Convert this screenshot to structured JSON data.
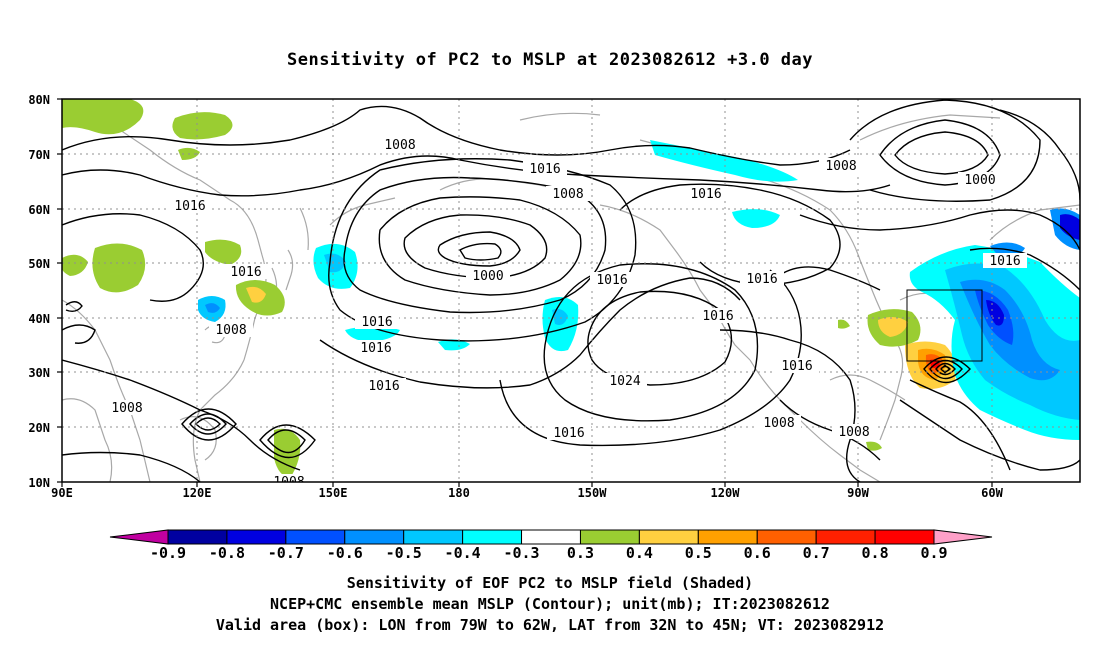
{
  "title": "Sensitivity of PC2 to MSLP at 2023082612 +3.0 day",
  "map": {
    "lon_range": [
      "90E",
      "40W"
    ],
    "lat_range": [
      "10N",
      "80N"
    ],
    "lon_ticks": [
      "90E",
      "120E",
      "150E",
      "180",
      "150W",
      "120W",
      "90W",
      "60W"
    ],
    "lat_ticks": [
      "80N",
      "70N",
      "60N",
      "50N",
      "40N",
      "30N",
      "20N",
      "10N"
    ],
    "contour_labels": [
      "1008",
      "1016",
      "1016",
      "1008",
      "1016",
      "1016",
      "1008",
      "1016",
      "1000",
      "1016",
      "1016",
      "1000",
      "1008",
      "1016",
      "1016",
      "1024",
      "1016",
      "1016",
      "1016",
      "1016",
      "1008",
      "1008",
      "1008",
      "1016",
      "1008"
    ],
    "valid_box": {
      "lon": [
        "79W",
        "62W"
      ],
      "lat": [
        "32N",
        "45N"
      ]
    }
  },
  "colorbar": {
    "labels": [
      "-0.9",
      "-0.8",
      "-0.7",
      "-0.6",
      "-0.5",
      "-0.4",
      "-0.3",
      "0.3",
      "0.4",
      "0.5",
      "0.6",
      "0.7",
      "0.8",
      "0.9"
    ],
    "colors": [
      "#c000a0",
      "#0000a0",
      "#0000e0",
      "#0050ff",
      "#0090ff",
      "#00c8ff",
      "#00ffff",
      "#ffffff",
      "#9acd32",
      "#ffd040",
      "#ffa000",
      "#ff6000",
      "#ff2000",
      "#ff0000",
      "#ffa0c8"
    ]
  },
  "footer": {
    "line1": "Sensitivity of EOF PC2 to MSLP field (Shaded)",
    "line2": "NCEP+CMC ensemble mean MSLP (Contour); unit(mb); IT:2023082612",
    "line3": "Valid area (box): LON from 79W to 62W, LAT from 32N to 45N; VT: 2023082912"
  }
}
